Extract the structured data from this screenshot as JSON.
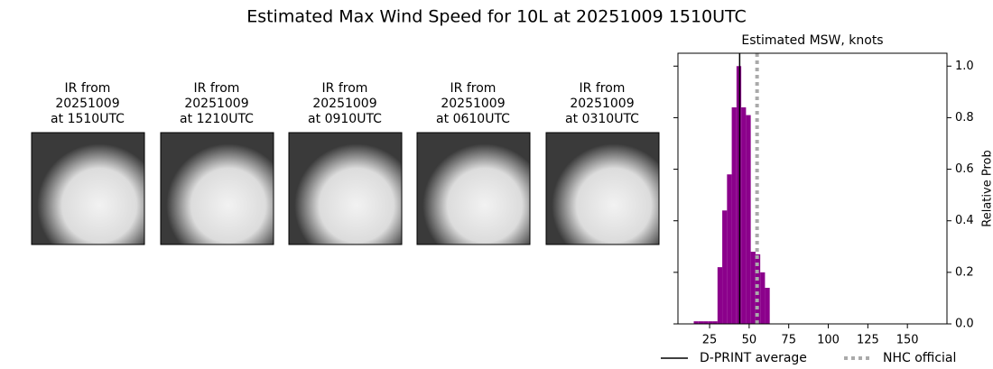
{
  "title": "Estimated Max Wind Speed for 10L at 20251009 1510UTC",
  "images": [
    {
      "lines": [
        "IR from",
        "20251009",
        "at 1510UTC"
      ]
    },
    {
      "lines": [
        "IR from",
        "20251009",
        "at 1210UTC"
      ]
    },
    {
      "lines": [
        "IR from",
        "20251009",
        "at 0910UTC"
      ]
    },
    {
      "lines": [
        "IR from",
        "20251009",
        "at 0610UTC"
      ]
    },
    {
      "lines": [
        "IR from",
        "20251009",
        "at 0310UTC"
      ]
    }
  ],
  "chart_data": {
    "type": "histogram",
    "title": "Estimated MSW, knots",
    "ylabel": "Relative Prob",
    "bins": [
      15,
      18,
      21,
      24,
      27,
      30,
      33,
      36,
      39,
      42,
      45,
      48,
      51,
      54,
      57,
      60,
      63
    ],
    "values": [
      0.01,
      0.01,
      0.01,
      0.01,
      0.01,
      0.22,
      0.44,
      0.58,
      0.84,
      1.0,
      0.84,
      0.81,
      0.28,
      0.27,
      0.2,
      0.14
    ],
    "color": "#8b008b",
    "xlim": [
      5,
      175
    ],
    "ylim": [
      0,
      1.05
    ],
    "xticks": [
      25,
      50,
      75,
      100,
      125,
      150
    ],
    "yticks": [
      {
        "value": 0,
        "label": "0.0"
      },
      {
        "value": 0.2,
        "label": "0.2"
      },
      {
        "value": 0.4,
        "label": "0.4"
      },
      {
        "value": 0.6,
        "label": "0.6"
      },
      {
        "value": 0.8,
        "label": "0.8"
      },
      {
        "value": 1.0,
        "label": "1.0"
      }
    ],
    "vlines": [
      {
        "name": "D-PRINT average",
        "value": 44,
        "color": "#000000",
        "dash": "solid"
      },
      {
        "name": "NHC official",
        "value": 55,
        "color": "#aaaaaa",
        "dash": "dotted"
      }
    ]
  }
}
